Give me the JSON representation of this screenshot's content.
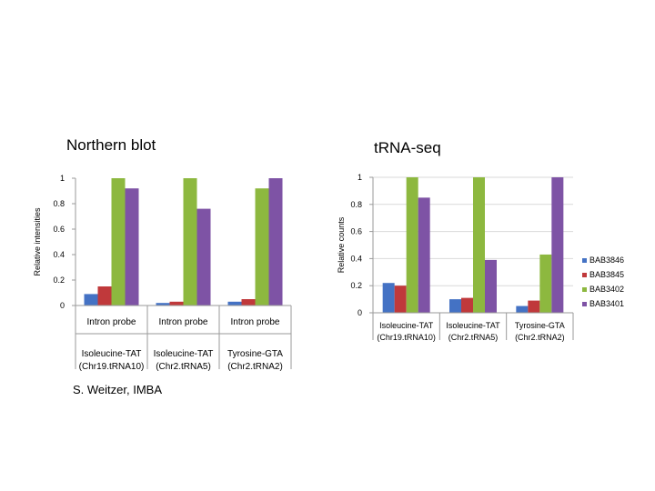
{
  "slide": {
    "credit": "S. Weitzer, IMBA"
  },
  "colors": {
    "BAB3846": "#4472C4",
    "BAB3845": "#C0393B",
    "BAB3402": "#8DB83F",
    "BAB3401": "#7E53A5"
  },
  "chart_data": [
    {
      "type": "bar",
      "title": "Northern blot",
      "ylabel": "Relative intensities",
      "xlabel": "",
      "ylim": [
        0,
        1
      ],
      "yticks": [
        "0",
        "0.2",
        "0.4",
        "0.6",
        "0.8",
        "1"
      ],
      "grid": false,
      "legend": "none",
      "categories": [
        {
          "probe": "Intron probe",
          "gene": "Isoleucine-TAT",
          "locus": "(Chr19.tRNA10)"
        },
        {
          "probe": "Intron probe",
          "gene": "Isoleucine-TAT",
          "locus": "(Chr2.tRNA5)"
        },
        {
          "probe": "Intron probe",
          "gene": "Tyrosine-GTA",
          "locus": "(Chr2.tRNA2)"
        }
      ],
      "series": [
        {
          "name": "BAB3846",
          "values": [
            0.09,
            0.02,
            0.03
          ]
        },
        {
          "name": "BAB3845",
          "values": [
            0.15,
            0.03,
            0.05
          ]
        },
        {
          "name": "BAB3402",
          "values": [
            1.0,
            1.0,
            0.92
          ]
        },
        {
          "name": "BAB3401",
          "values": [
            0.92,
            0.76,
            1.0
          ]
        }
      ]
    },
    {
      "type": "bar",
      "title": "tRNA-seq",
      "ylabel": "Relative counts",
      "xlabel": "",
      "ylim": [
        0,
        1
      ],
      "yticks": [
        "0",
        "0.2",
        "0.4",
        "0.6",
        "0.8",
        "1"
      ],
      "grid": true,
      "legend": "right",
      "categories": [
        {
          "gene": "Isoleucine-TAT",
          "locus": "(Chr19.tRNA10)"
        },
        {
          "gene": "Isoleucine-TAT",
          "locus": "(Chr2.tRNA5)"
        },
        {
          "gene": "Tyrosine-GTA",
          "locus": "(Chr2.tRNA2)"
        }
      ],
      "series": [
        {
          "name": "BAB3846",
          "values": [
            0.22,
            0.1,
            0.05
          ]
        },
        {
          "name": "BAB3845",
          "values": [
            0.2,
            0.11,
            0.09
          ]
        },
        {
          "name": "BAB3402",
          "values": [
            1.0,
            1.0,
            0.43
          ]
        },
        {
          "name": "BAB3401",
          "values": [
            0.85,
            0.39,
            1.0
          ]
        }
      ]
    }
  ]
}
